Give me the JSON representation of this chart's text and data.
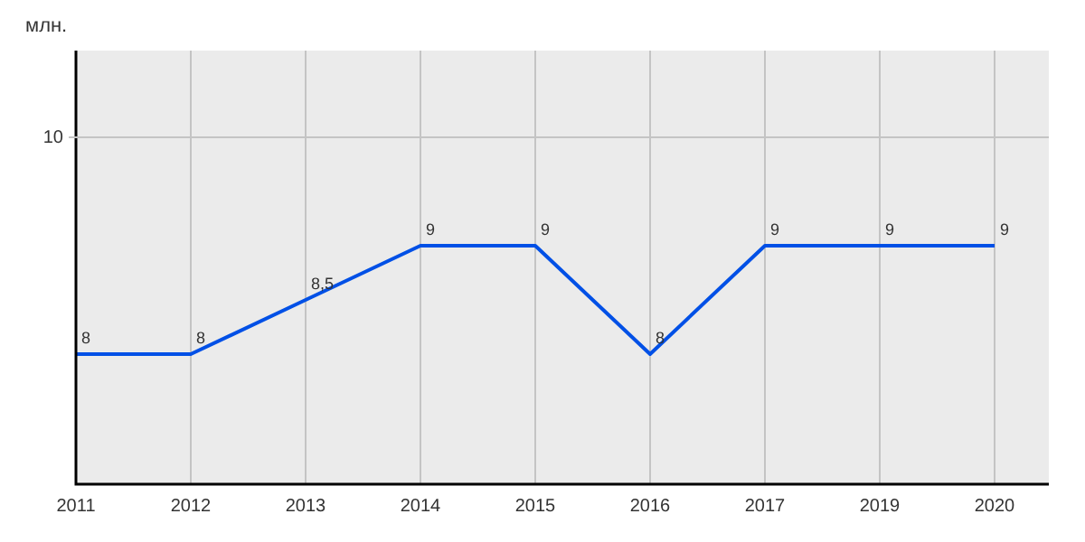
{
  "chart_data": {
    "type": "line",
    "annotations": [
      "млн."
    ],
    "categories": [
      "2011",
      "2012",
      "2013",
      "2014",
      "2015",
      "2016",
      "2017",
      "2019",
      "2020"
    ],
    "series": [
      {
        "color": "#0050e6",
        "values": [
          8,
          8,
          8.5,
          9,
          9,
          8,
          9,
          9,
          9
        ],
        "value_labels": [
          "8",
          "8",
          "8,5",
          "9",
          "9",
          "8",
          "9",
          "9",
          "9"
        ]
      }
    ],
    "ref_lines": [
      {
        "axis": "y",
        "value": 10,
        "label": "10",
        "color": "#c4c4c4"
      }
    ],
    "grid": "x",
    "legend": false,
    "marker": "none",
    "line_style": "solid"
  }
}
